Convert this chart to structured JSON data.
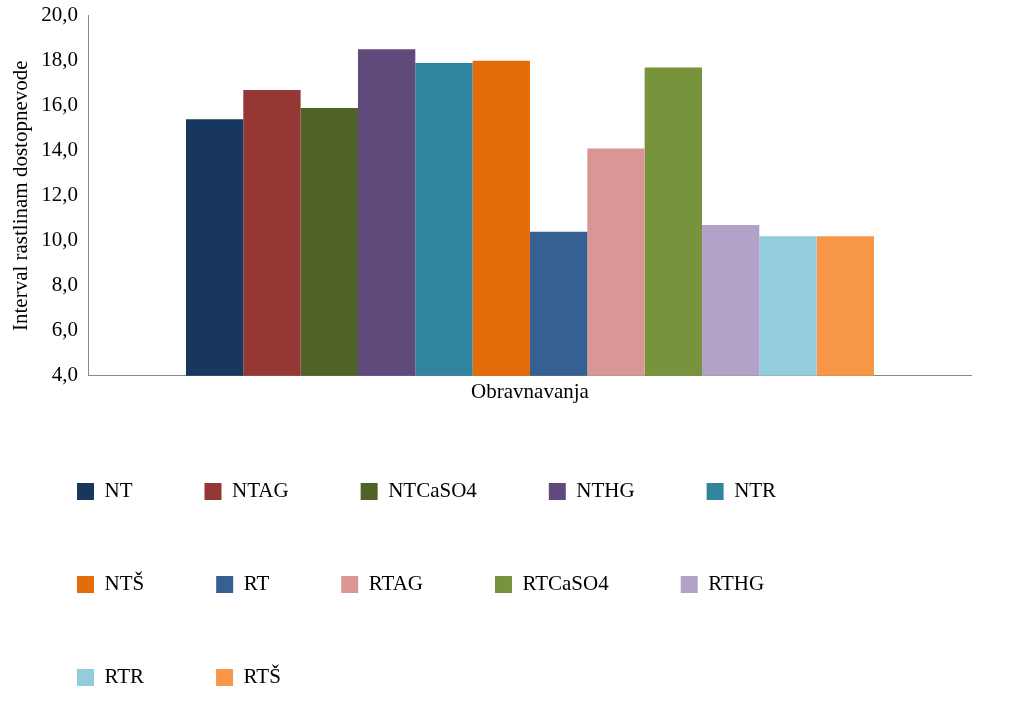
{
  "chart_data": {
    "type": "bar",
    "xlabel": "Obravnavanja",
    "ylabel": "Interval rastlinam dostopnevode",
    "categories": [
      null
    ],
    "series": [
      {
        "name": "NT",
        "color": "#17375e",
        "values": [
          15.4
        ]
      },
      {
        "name": "NTAG",
        "color": "#953735",
        "values": [
          16.7
        ]
      },
      {
        "name": "NTCaSO4",
        "color": "#4f6228",
        "values": [
          15.9
        ]
      },
      {
        "name": "NTHG",
        "color": "#604a7b",
        "values": [
          18.5
        ]
      },
      {
        "name": "NTR",
        "color": "#31859c",
        "values": [
          17.9
        ]
      },
      {
        "name": "NTŠ",
        "color": "#e46c0a",
        "values": [
          18.0
        ]
      },
      {
        "name": "RT",
        "color": "#376092",
        "values": [
          10.4
        ]
      },
      {
        "name": "RTAG",
        "color": "#d99694",
        "values": [
          14.1
        ]
      },
      {
        "name": "RTCaSO4",
        "color": "#77933c",
        "values": [
          17.7
        ]
      },
      {
        "name": "RTHG",
        "color": "#b3a2c7",
        "values": [
          10.7
        ]
      },
      {
        "name": "RTR",
        "color": "#93cddd",
        "values": [
          10.2
        ]
      },
      {
        "name": "RTŠ",
        "color": "#f79646",
        "values": [
          10.2
        ]
      }
    ],
    "ylim": [
      4,
      20
    ],
    "yticks": [
      {
        "value": 4,
        "label": "4,0"
      },
      {
        "value": 6,
        "label": "6,0"
      },
      {
        "value": 8,
        "label": "8,0"
      },
      {
        "value": 10,
        "label": "10,0"
      },
      {
        "value": 12,
        "label": "12,0"
      },
      {
        "value": 14,
        "label": "14,0"
      },
      {
        "value": 16,
        "label": "16,0"
      },
      {
        "value": 18,
        "label": "18,0"
      },
      {
        "value": 20,
        "label": "20,0"
      }
    ],
    "grid": false,
    "legend": "bottom"
  }
}
